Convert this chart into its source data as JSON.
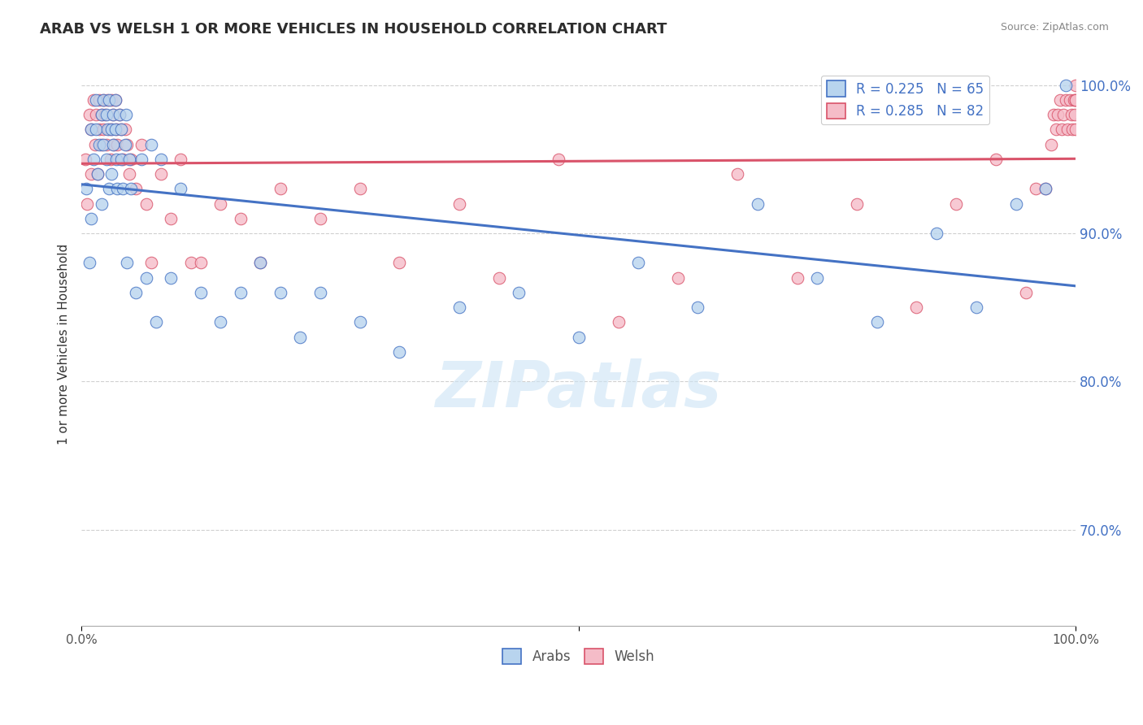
{
  "title": "ARAB VS WELSH 1 OR MORE VEHICLES IN HOUSEHOLD CORRELATION CHART",
  "source": "Source: ZipAtlas.com",
  "ylabel": "1 or more Vehicles in Household",
  "xlim": [
    0,
    1
  ],
  "ylim": [
    0.635,
    1.015
  ],
  "ytick_positions": [
    0.7,
    0.8,
    0.9,
    1.0
  ],
  "ytick_labels": [
    "70.0%",
    "80.0%",
    "90.0%",
    "100.0%"
  ],
  "grid_color": "#d0d0d0",
  "background_color": "#ffffff",
  "watermark_text": "ZIPatlas",
  "arab_scatter_color": "#b8d4ee",
  "welsh_scatter_color": "#f5bcc8",
  "arab_line_color": "#4472c4",
  "welsh_line_color": "#d9536a",
  "arab_R": 0.225,
  "arab_N": 65,
  "welsh_R": 0.285,
  "welsh_N": 82,
  "arab_scatter_x": [
    0.005,
    0.008,
    0.01,
    0.01,
    0.012,
    0.015,
    0.015,
    0.016,
    0.018,
    0.02,
    0.02,
    0.022,
    0.022,
    0.025,
    0.025,
    0.026,
    0.028,
    0.028,
    0.03,
    0.03,
    0.032,
    0.032,
    0.034,
    0.034,
    0.035,
    0.036,
    0.038,
    0.04,
    0.04,
    0.042,
    0.044,
    0.045,
    0.046,
    0.048,
    0.05,
    0.055,
    0.06,
    0.065,
    0.07,
    0.075,
    0.08,
    0.09,
    0.1,
    0.12,
    0.14,
    0.16,
    0.18,
    0.2,
    0.22,
    0.24,
    0.28,
    0.32,
    0.38,
    0.44,
    0.5,
    0.56,
    0.62,
    0.68,
    0.74,
    0.8,
    0.86,
    0.9,
    0.94,
    0.97,
    0.99
  ],
  "arab_scatter_y": [
    0.93,
    0.88,
    0.97,
    0.91,
    0.95,
    0.99,
    0.97,
    0.94,
    0.96,
    0.98,
    0.92,
    0.99,
    0.96,
    0.98,
    0.95,
    0.97,
    0.93,
    0.99,
    0.97,
    0.94,
    0.98,
    0.96,
    0.99,
    0.97,
    0.95,
    0.93,
    0.98,
    0.97,
    0.95,
    0.93,
    0.96,
    0.98,
    0.88,
    0.95,
    0.93,
    0.86,
    0.95,
    0.87,
    0.96,
    0.84,
    0.95,
    0.87,
    0.93,
    0.86,
    0.84,
    0.86,
    0.88,
    0.86,
    0.83,
    0.86,
    0.84,
    0.82,
    0.85,
    0.86,
    0.83,
    0.88,
    0.85,
    0.92,
    0.87,
    0.84,
    0.9,
    0.85,
    0.92,
    0.93,
    1.0
  ],
  "welsh_scatter_x": [
    0.004,
    0.006,
    0.008,
    0.01,
    0.01,
    0.012,
    0.014,
    0.015,
    0.016,
    0.018,
    0.018,
    0.02,
    0.02,
    0.022,
    0.022,
    0.024,
    0.025,
    0.026,
    0.028,
    0.029,
    0.03,
    0.03,
    0.032,
    0.033,
    0.034,
    0.035,
    0.036,
    0.038,
    0.04,
    0.042,
    0.044,
    0.046,
    0.048,
    0.05,
    0.055,
    0.06,
    0.065,
    0.07,
    0.08,
    0.09,
    0.1,
    0.11,
    0.12,
    0.14,
    0.16,
    0.18,
    0.2,
    0.24,
    0.28,
    0.32,
    0.38,
    0.42,
    0.48,
    0.54,
    0.6,
    0.66,
    0.72,
    0.78,
    0.84,
    0.88,
    0.92,
    0.95,
    0.96,
    0.97,
    0.975,
    0.978,
    0.98,
    0.982,
    0.984,
    0.986,
    0.988,
    0.99,
    0.992,
    0.994,
    0.996,
    0.997,
    0.998,
    0.999,
    0.9995,
    0.9998,
    1.0,
    1.0
  ],
  "welsh_scatter_y": [
    0.95,
    0.92,
    0.98,
    0.97,
    0.94,
    0.99,
    0.96,
    0.98,
    0.94,
    0.99,
    0.97,
    0.98,
    0.96,
    0.99,
    0.97,
    0.98,
    0.96,
    0.99,
    0.97,
    0.95,
    0.99,
    0.97,
    0.98,
    0.96,
    0.99,
    0.97,
    0.96,
    0.98,
    0.97,
    0.95,
    0.97,
    0.96,
    0.94,
    0.95,
    0.93,
    0.96,
    0.92,
    0.88,
    0.94,
    0.91,
    0.95,
    0.88,
    0.88,
    0.92,
    0.91,
    0.88,
    0.93,
    0.91,
    0.93,
    0.88,
    0.92,
    0.87,
    0.95,
    0.84,
    0.87,
    0.94,
    0.87,
    0.92,
    0.85,
    0.92,
    0.95,
    0.86,
    0.93,
    0.93,
    0.96,
    0.98,
    0.97,
    0.98,
    0.99,
    0.97,
    0.98,
    0.99,
    0.97,
    0.99,
    0.98,
    0.97,
    0.99,
    0.98,
    0.99,
    0.97,
    0.99,
    1.0
  ]
}
